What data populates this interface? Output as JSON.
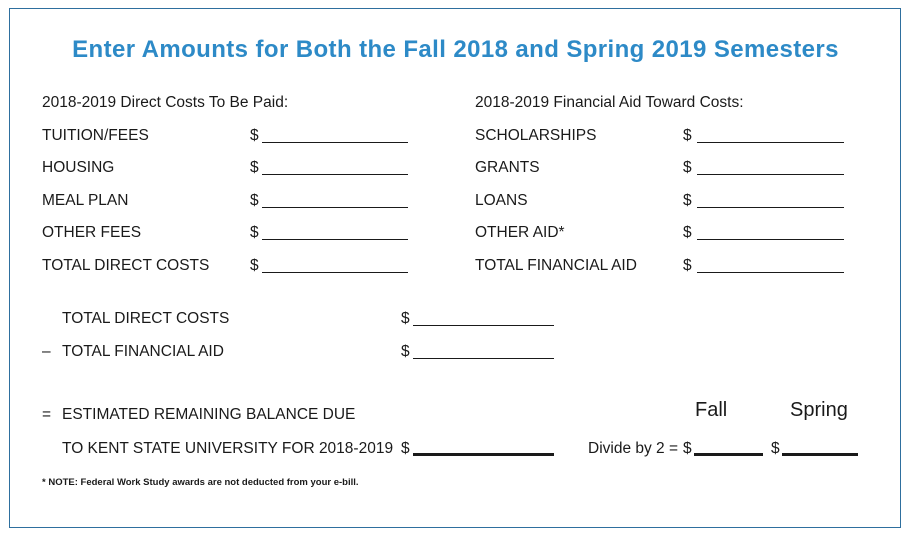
{
  "form": {
    "title": "Enter Amounts for Both the Fall 2018 and Spring 2019 Semesters",
    "currency": "$",
    "costs": {
      "heading": "2018-2019 Direct Costs To Be Paid:",
      "items": [
        "TUITION/FEES",
        "HOUSING",
        "MEAL PLAN",
        "OTHER FEES",
        "TOTAL DIRECT COSTS"
      ]
    },
    "aid": {
      "heading": "2018-2019 Financial Aid Toward Costs:",
      "items": [
        "SCHOLARSHIPS",
        "GRANTS",
        "LOANS",
        "OTHER AID*",
        "TOTAL FINANCIAL AID"
      ]
    },
    "calc": {
      "line1": "TOTAL DIRECT COSTS",
      "minus_sign": "–",
      "line2": "TOTAL FINANCIAL AID",
      "equals_sign": "=",
      "balance_label_1": "ESTIMATED REMAINING BALANCE DUE",
      "balance_label_2": "TO KENT STATE UNIVERSITY FOR 2018-2019"
    },
    "split": {
      "fall_heading": "Fall",
      "spring_heading": "Spring",
      "divide_label": "Divide by 2 ="
    },
    "note": "* NOTE: Federal Work Study awards are not deducted from your e-bill."
  }
}
